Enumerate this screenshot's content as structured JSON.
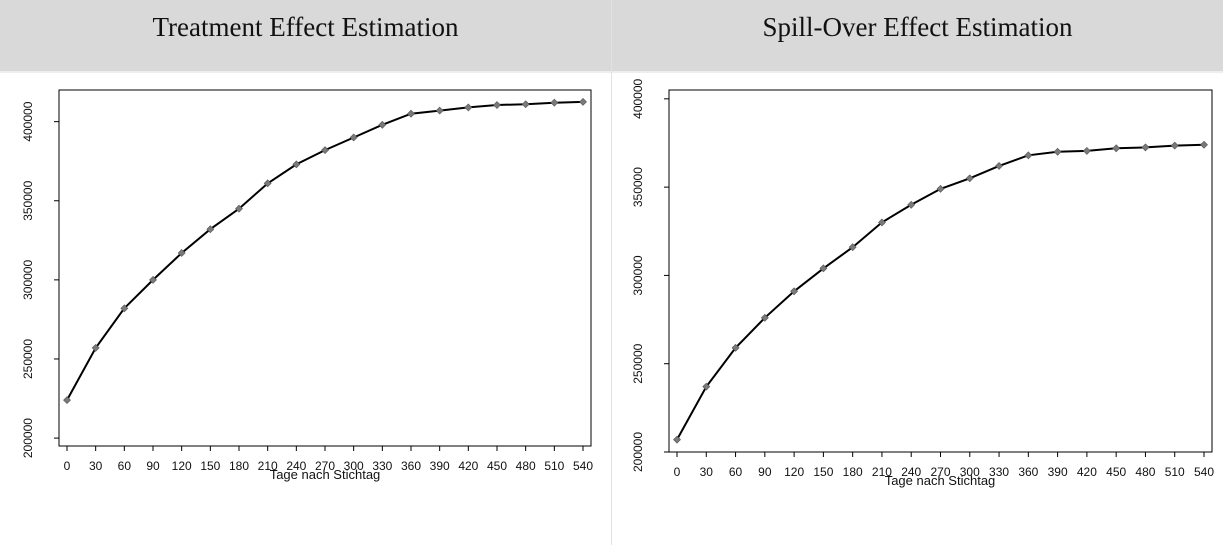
{
  "chart_data": [
    {
      "type": "line",
      "title": "Treatment Effect Estimation",
      "xlabel": "Tage nach Stichtag",
      "ylabel": "",
      "x": [
        0,
        30,
        60,
        90,
        120,
        150,
        180,
        210,
        240,
        270,
        300,
        330,
        360,
        390,
        420,
        450,
        480,
        510,
        540
      ],
      "y": [
        224000,
        257000,
        282000,
        300000,
        317000,
        332000,
        345000,
        361000,
        373000,
        382000,
        390000,
        398000,
        405000,
        407000,
        409000,
        410500,
        411000,
        412000,
        412500
      ],
      "xlim": [
        0,
        540
      ],
      "ylim": [
        195000,
        420000
      ],
      "yticks": [
        200000,
        250000,
        300000,
        350000,
        400000
      ],
      "line_color": "#000000",
      "marker_color": "#7a7a7a",
      "grid": false
    },
    {
      "type": "line",
      "title": "Spill-Over Effect Estimation",
      "xlabel": "Tage nach Stichtag",
      "ylabel": "",
      "x": [
        0,
        30,
        60,
        90,
        120,
        150,
        180,
        210,
        240,
        270,
        300,
        330,
        360,
        390,
        420,
        450,
        480,
        510,
        540
      ],
      "y": [
        207000,
        237000,
        259000,
        276000,
        291000,
        304000,
        316000,
        330000,
        340000,
        349000,
        355000,
        362000,
        368000,
        370000,
        370500,
        372000,
        372500,
        373500,
        374000
      ],
      "xlim": [
        0,
        540
      ],
      "ylim": [
        200000,
        405000
      ],
      "yticks": [
        200000,
        250000,
        300000,
        350000,
        400000
      ],
      "line_color": "#000000",
      "marker_color": "#7a7a7a",
      "grid": false
    }
  ]
}
